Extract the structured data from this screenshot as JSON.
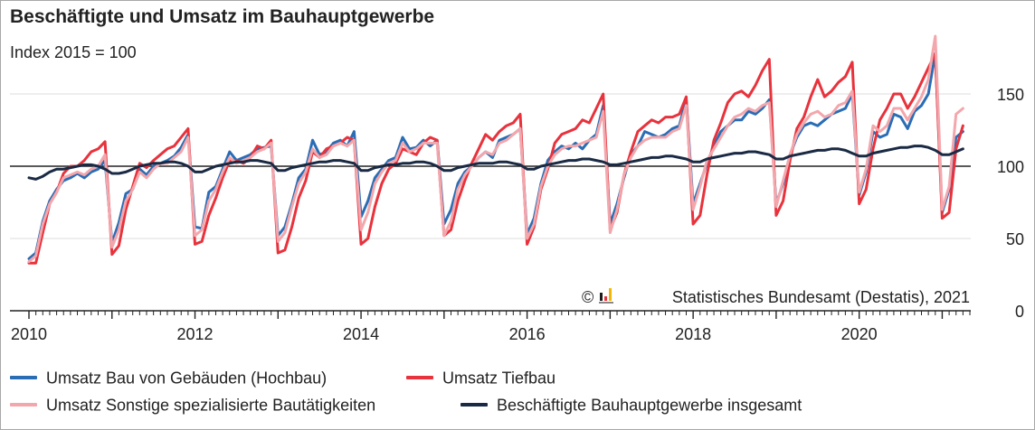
{
  "chart_data": {
    "type": "line",
    "title": "Beschäftigte und Umsatz im Bauhauptgewerbe",
    "subtitle": "Index 2015 = 100",
    "copyright": "© ",
    "source": "Statistisches Bundesamt (Destatis), 2021",
    "xlabel": "",
    "ylabel": "",
    "xlim": [
      2010,
      2021.333
    ],
    "ylim": [
      0,
      185
    ],
    "x_ticks": [
      {
        "value": 2010,
        "label": "2010"
      },
      {
        "value": 2012,
        "label": "2012"
      },
      {
        "value": 2014,
        "label": "2014"
      },
      {
        "value": 2016,
        "label": "2016"
      },
      {
        "value": 2018,
        "label": "2018"
      },
      {
        "value": 2020,
        "label": "2020"
      }
    ],
    "y_ticks": [
      {
        "value": 0,
        "label": "0"
      },
      {
        "value": 50,
        "label": "50"
      },
      {
        "value": 100,
        "label": "100"
      },
      {
        "value": 150,
        "label": "150"
      }
    ],
    "reference_line": 100,
    "grid": true,
    "legend_position": "bottom",
    "x_start": "2010-01",
    "x_step": "month",
    "series": [
      {
        "name": "Umsatz Bau von Gebäuden (Hochbau)",
        "color": "#2a6db5",
        "values": [
          36,
          40,
          62,
          76,
          84,
          90,
          92,
          95,
          92,
          96,
          98,
          104,
          47,
          61,
          81,
          84,
          98,
          94,
          100,
          102,
          104,
          107,
          113,
          122,
          58,
          57,
          82,
          86,
          98,
          110,
          104,
          106,
          108,
          112,
          113,
          114,
          52,
          58,
          74,
          92,
          98,
          118,
          108,
          110,
          116,
          118,
          114,
          124,
          65,
          76,
          92,
          98,
          104,
          106,
          120,
          112,
          113,
          118,
          114,
          118,
          60,
          70,
          88,
          96,
          100,
          106,
          110,
          106,
          118,
          120,
          122,
          126,
          53,
          64,
          88,
          104,
          110,
          114,
          112,
          116,
          112,
          118,
          122,
          142,
          60,
          74,
          92,
          108,
          114,
          124,
          122,
          120,
          122,
          126,
          128,
          146,
          74,
          88,
          102,
          114,
          124,
          128,
          132,
          132,
          138,
          136,
          140,
          146,
          74,
          88,
          108,
          120,
          128,
          130,
          128,
          132,
          136,
          138,
          140,
          150,
          80,
          96,
          124,
          120,
          122,
          136,
          134,
          126,
          138,
          142,
          150,
          178,
          68,
          84,
          120,
          124
        ]
      },
      {
        "name": "Umsatz Tiefbau",
        "color": "#e8323c",
        "values": [
          33,
          33,
          54,
          74,
          82,
          95,
          100,
          100,
          104,
          110,
          112,
          117,
          39,
          45,
          70,
          86,
          102,
          99,
          104,
          108,
          112,
          114,
          120,
          126,
          46,
          48,
          66,
          78,
          92,
          104,
          104,
          102,
          106,
          114,
          112,
          118,
          40,
          42,
          58,
          78,
          90,
          110,
          106,
          112,
          114,
          116,
          120,
          118,
          46,
          50,
          72,
          88,
          98,
          102,
          112,
          110,
          108,
          116,
          120,
          118,
          52,
          56,
          76,
          90,
          102,
          112,
          122,
          118,
          124,
          128,
          130,
          136,
          46,
          58,
          84,
          98,
          116,
          122,
          124,
          126,
          132,
          130,
          140,
          150,
          56,
          68,
          94,
          110,
          124,
          128,
          132,
          130,
          134,
          134,
          136,
          148,
          60,
          66,
          94,
          118,
          130,
          144,
          150,
          152,
          148,
          156,
          166,
          174,
          66,
          76,
          104,
          126,
          134,
          148,
          160,
          148,
          152,
          158,
          162,
          172,
          74,
          84,
          112,
          132,
          140,
          150,
          150,
          140,
          148,
          158,
          168,
          178,
          64,
          68,
          112,
          128
        ]
      },
      {
        "name": "Umsatz Sonstige spezialisierte Bautätigkeiten",
        "color": "#f3a7ac",
        "values": [
          34,
          38,
          60,
          74,
          82,
          92,
          94,
          96,
          94,
          98,
          100,
          108,
          44,
          56,
          76,
          84,
          96,
          92,
          98,
          102,
          102,
          106,
          110,
          120,
          52,
          56,
          76,
          84,
          96,
          106,
          102,
          104,
          106,
          110,
          112,
          116,
          48,
          54,
          72,
          88,
          96,
          112,
          106,
          108,
          114,
          116,
          114,
          118,
          56,
          68,
          88,
          96,
          102,
          104,
          116,
          110,
          112,
          116,
          116,
          116,
          52,
          62,
          84,
          94,
          100,
          106,
          110,
          108,
          116,
          118,
          122,
          126,
          50,
          60,
          86,
          100,
          108,
          112,
          114,
          114,
          116,
          118,
          120,
          138,
          54,
          70,
          94,
          106,
          114,
          118,
          120,
          120,
          120,
          124,
          126,
          142,
          70,
          86,
          104,
          112,
          120,
          128,
          134,
          136,
          140,
          138,
          142,
          144,
          72,
          90,
          108,
          122,
          130,
          136,
          138,
          134,
          136,
          142,
          144,
          152,
          82,
          98,
          128,
          124,
          128,
          140,
          140,
          132,
          140,
          148,
          160,
          190,
          70,
          86,
          136,
          140
        ]
      },
      {
        "name": "Beschäftigte Bauhauptgewerbe insgesamt",
        "color": "#1a2a44",
        "values": [
          92,
          91,
          93,
          96,
          98,
          98,
          99,
          100,
          101,
          101,
          100,
          98,
          95,
          95,
          96,
          98,
          100,
          101,
          102,
          102,
          103,
          103,
          102,
          100,
          96,
          96,
          98,
          100,
          101,
          102,
          103,
          103,
          104,
          104,
          103,
          102,
          97,
          97,
          99,
          100,
          101,
          102,
          103,
          103,
          104,
          104,
          103,
          102,
          97,
          97,
          99,
          100,
          101,
          101,
          102,
          102,
          103,
          103,
          102,
          100,
          97,
          97,
          99,
          100,
          101,
          102,
          102,
          102,
          103,
          103,
          102,
          101,
          98,
          98,
          100,
          101,
          102,
          103,
          104,
          104,
          105,
          105,
          104,
          103,
          101,
          101,
          102,
          103,
          104,
          105,
          106,
          106,
          107,
          107,
          106,
          105,
          103,
          103,
          105,
          106,
          107,
          108,
          109,
          109,
          110,
          110,
          109,
          108,
          105,
          105,
          107,
          108,
          109,
          110,
          111,
          111,
          112,
          112,
          111,
          109,
          107,
          107,
          109,
          110,
          111,
          112,
          113,
          113,
          114,
          114,
          113,
          111,
          108,
          108,
          110,
          112
        ]
      }
    ]
  },
  "legend": {
    "items": [
      {
        "label": "Umsatz Bau von Gebäuden (Hochbau)",
        "color": "#2a6db5"
      },
      {
        "label": "Umsatz Tiefbau",
        "color": "#e8323c"
      },
      {
        "label": "Umsatz Sonstige spezialisierte Bautätigkeiten",
        "color": "#f3a7ac"
      },
      {
        "label": "Beschäftigte Bauhauptgewerbe insgesamt",
        "color": "#1a2a44"
      }
    ]
  }
}
